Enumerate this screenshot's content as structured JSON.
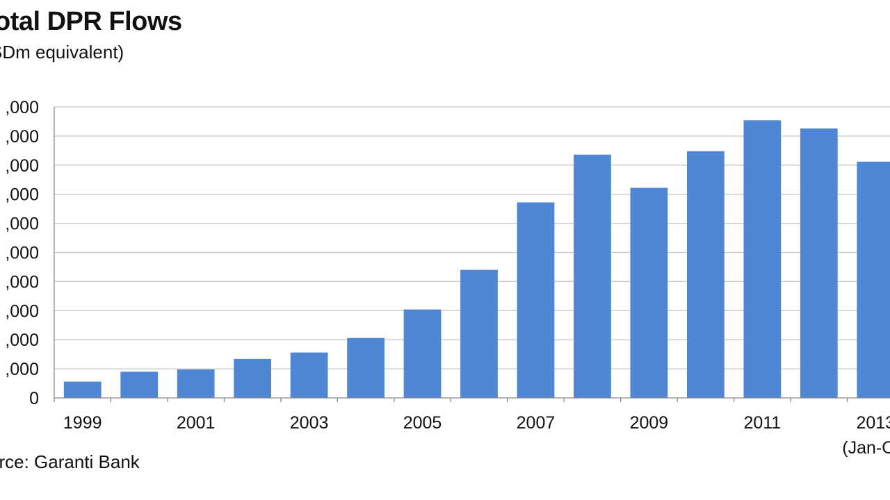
{
  "header": {
    "title": "otal DPR Flows",
    "subtitle": "SDm equivalent)"
  },
  "footer": {
    "source": "urce: Garanti Bank"
  },
  "colors": {
    "bar": "#4f87d4",
    "grid": "#c8c8c8",
    "axis": "#888888"
  },
  "chart_data": {
    "type": "bar",
    "title": "otal DPR Flows",
    "subtitle": "SDm equivalent)",
    "categories": [
      "1999",
      "2000",
      "2001",
      "2002",
      "2003",
      "2004",
      "2005",
      "2006",
      "2007",
      "2008",
      "2009",
      "2010",
      "2011",
      "2012",
      "2013 (Jan-O"
    ],
    "values": [
      2800,
      4500,
      4900,
      6700,
      7800,
      10300,
      15200,
      22000,
      33600,
      41800,
      36100,
      42400,
      47700,
      46300,
      40600
    ],
    "x_tick_labels": [
      {
        "category": "1999",
        "text": "1999"
      },
      {
        "category": "2001",
        "text": "2001"
      },
      {
        "category": "2003",
        "text": "2003"
      },
      {
        "category": "2005",
        "text": "2005"
      },
      {
        "category": "2007",
        "text": "2007"
      },
      {
        "category": "2009",
        "text": "2009"
      },
      {
        "category": "2011",
        "text": "2011"
      },
      {
        "category": "2013 (Jan-O",
        "text": "2013",
        "sub": "(Jan-O"
      }
    ],
    "y_ticks": [
      0,
      5000,
      10000,
      15000,
      20000,
      25000,
      30000,
      35000,
      40000,
      45000,
      50000
    ],
    "y_tick_labels": [
      "0",
      ",000",
      ",000",
      ",000",
      ",000",
      ",000",
      ",000",
      ",000",
      ",000",
      ",000",
      ",000"
    ],
    "ylim": [
      0,
      50000
    ],
    "grid": true,
    "legend": "none",
    "source": "urce: Garanti Bank"
  }
}
